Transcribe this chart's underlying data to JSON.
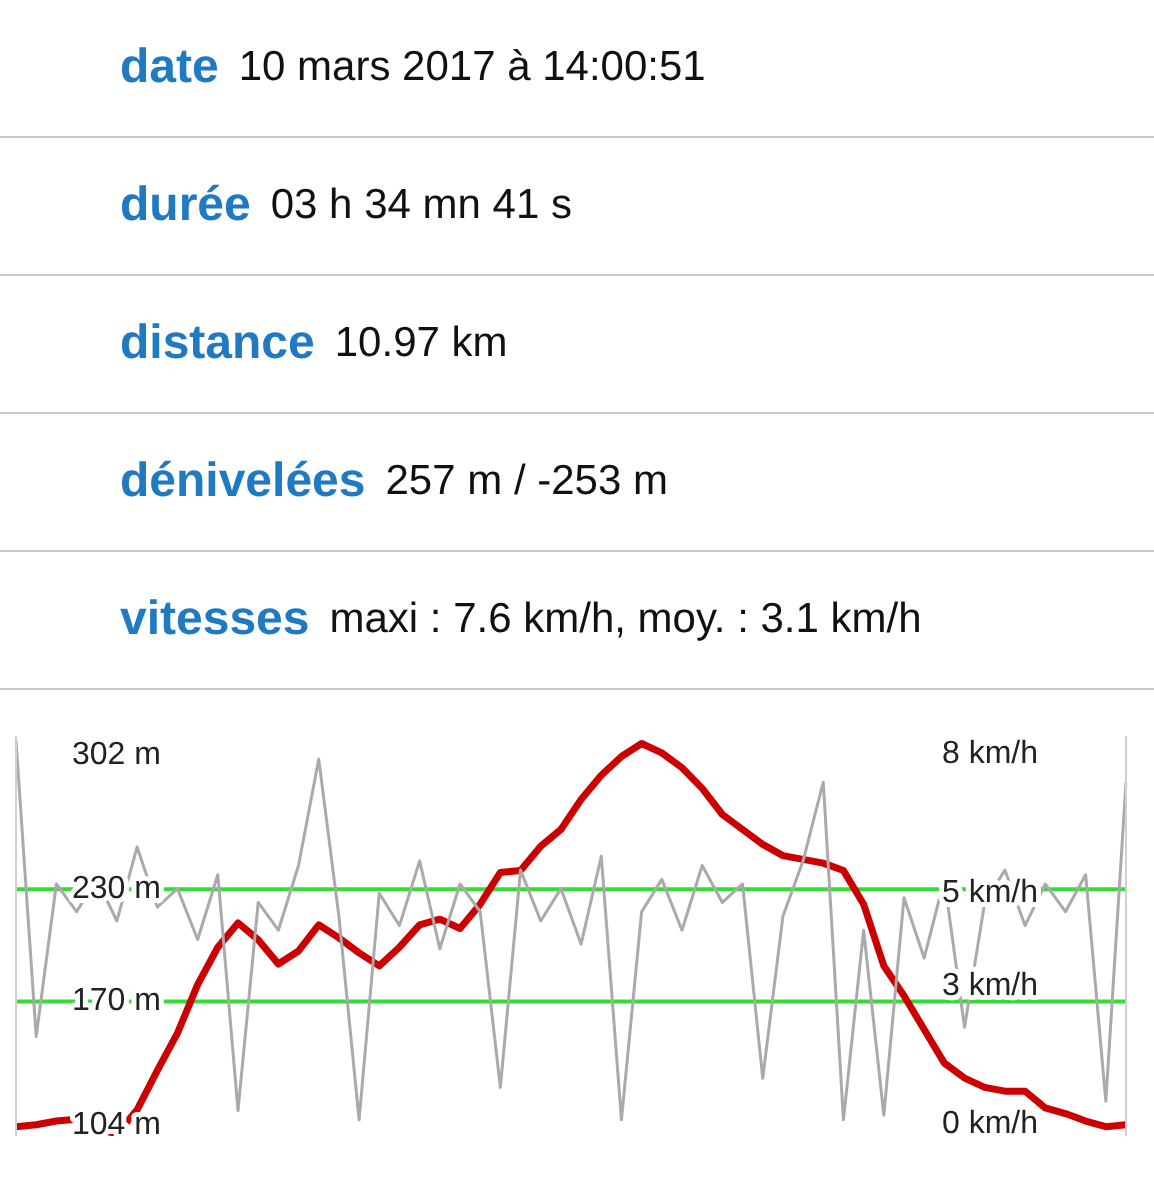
{
  "chart_data": [
    {
      "type": "other",
      "annotations": [
        "date",
        "10 mars 2017 à 14:00:51",
        "durée",
        "03 h 34 mn 41 s",
        "distance",
        "10.97 km",
        "dénivelées",
        "257 m / -253 m",
        "vitesses",
        "maxi : 7.6 km/h, moy. : 3.1 km/h"
      ]
    },
    {
      "type": "line",
      "categories": [
        null,
        null,
        null,
        null,
        null,
        null,
        null,
        null,
        null,
        null,
        null,
        null,
        null,
        null,
        null,
        null,
        null,
        null,
        null,
        null,
        null,
        null,
        null,
        null,
        null,
        null,
        null,
        null,
        null,
        null,
        null,
        null,
        null,
        null,
        null,
        null,
        null,
        null,
        null,
        null,
        null,
        null,
        null,
        null,
        null,
        null,
        null,
        null,
        null,
        null,
        null,
        null,
        null,
        null,
        null,
        null
      ],
      "series": [
        {
          "color": "#aaaaaa",
          "axis": "y2",
          "values": [
            8.3,
            1.9,
            5.2,
            4.6,
            5.3,
            4.4,
            6.0,
            4.7,
            5.1,
            4.0,
            5.4,
            0.3,
            4.8,
            4.2,
            5.6,
            7.9,
            4.5,
            0.1,
            5.0,
            4.3,
            5.7,
            3.8,
            5.2,
            4.6,
            0.8,
            5.5,
            4.4,
            5.1,
            3.9,
            5.8,
            0.1,
            4.6,
            5.3,
            4.2,
            5.6,
            4.8,
            5.2,
            1.0,
            4.5,
            5.7,
            7.4,
            0.1,
            4.2,
            0.2,
            4.9,
            3.6,
            5.3,
            2.1,
            4.8,
            5.5,
            4.3,
            5.2,
            4.6,
            5.4,
            0.5,
            7.4
          ]
        },
        {
          "color": "#cc0000",
          "axis": "y",
          "values": [
            103,
            104,
            106,
            107,
            102,
            99,
            112,
            133,
            153,
            179,
            199,
            212,
            203,
            190,
            197,
            211,
            204,
            196,
            189,
            199,
            211,
            214,
            209,
            222,
            239,
            240,
            253,
            262,
            278,
            291,
            301,
            308,
            303,
            295,
            284,
            270,
            262,
            254,
            248,
            246,
            244,
            240,
            222,
            189,
            173,
            155,
            137,
            129,
            124,
            122,
            122,
            113,
            110,
            106,
            103,
            104
          ]
        }
      ],
      "ylim": [
        98,
        312
      ],
      "yticks": [
        {
          "value": 104,
          "label": "104 m"
        },
        {
          "value": 170,
          "label": "170 m"
        },
        {
          "value": 230,
          "label": "230 m"
        },
        {
          "value": 302,
          "label": "302 m"
        }
      ],
      "y2lim": [
        -0.25,
        8.4
      ],
      "y2ticks": [
        {
          "value": 0,
          "label": "0 km/h"
        },
        {
          "value": 3,
          "label": "3 km/h"
        },
        {
          "value": 5,
          "label": "5 km/h"
        },
        {
          "value": 8,
          "label": "8 km/h"
        }
      ],
      "ref_lines": [
        {
          "axis": "y",
          "value": 230,
          "color": "#33dd33"
        },
        {
          "axis": "y",
          "value": 170,
          "color": "#33dd33"
        }
      ],
      "tick_labels": "y",
      "marker": "none",
      "legend": false
    }
  ]
}
